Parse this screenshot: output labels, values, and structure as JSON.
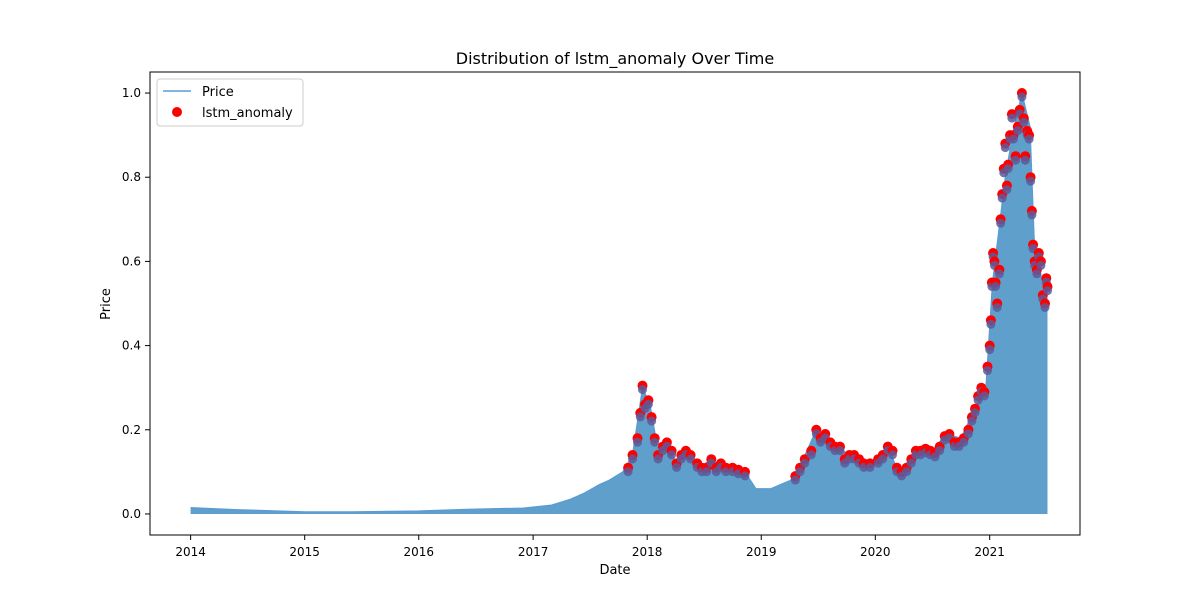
{
  "chart_data": {
    "type": "area",
    "title": "Distribution of lstm_anomaly Over Time",
    "xlabel": "Date",
    "ylabel": "Price",
    "x_range": [
      "2013-08-24",
      "2021-10-17"
    ],
    "ylim": [
      -0.05,
      1.05
    ],
    "x_ticks": [
      "2014",
      "2015",
      "2016",
      "2017",
      "2018",
      "2019",
      "2020",
      "2021"
    ],
    "y_ticks": [
      "0.0",
      "0.2",
      "0.4",
      "0.6",
      "0.8",
      "1.0"
    ],
    "grid": false,
    "legend": {
      "position": "top-left",
      "entries": [
        "Price",
        "lstm_anomaly"
      ]
    },
    "colors": {
      "price_line": "#5b9bd5",
      "price_fill": "#5f9fcb",
      "anomaly": "#ff0000",
      "anomaly_center": "#5a5a9a"
    },
    "series": [
      {
        "name": "Price",
        "points": [
          [
            "2014-01-01",
            0.015
          ],
          [
            "2014-03-01",
            0.013
          ],
          [
            "2014-06-01",
            0.01
          ],
          [
            "2014-09-01",
            0.008
          ],
          [
            "2015-01-01",
            0.005
          ],
          [
            "2015-06-01",
            0.005
          ],
          [
            "2016-01-01",
            0.007
          ],
          [
            "2016-06-01",
            0.011
          ],
          [
            "2016-12-01",
            0.014
          ],
          [
            "2017-03-01",
            0.021
          ],
          [
            "2017-05-01",
            0.035
          ],
          [
            "2017-06-15",
            0.05
          ],
          [
            "2017-08-01",
            0.07
          ],
          [
            "2017-09-01",
            0.08
          ],
          [
            "2017-10-15",
            0.1
          ],
          [
            "2017-11-15",
            0.14
          ],
          [
            "2017-12-17",
            0.3
          ],
          [
            "2018-01-10",
            0.26
          ],
          [
            "2018-02-05",
            0.15
          ],
          [
            "2018-03-01",
            0.17
          ],
          [
            "2018-04-05",
            0.12
          ],
          [
            "2018-05-05",
            0.15
          ],
          [
            "2018-06-15",
            0.11
          ],
          [
            "2018-07-25",
            0.13
          ],
          [
            "2018-09-01",
            0.11
          ],
          [
            "2018-11-10",
            0.1
          ],
          [
            "2018-12-15",
            0.06
          ],
          [
            "2019-02-01",
            0.06
          ],
          [
            "2019-04-05",
            0.08
          ],
          [
            "2019-05-15",
            0.13
          ],
          [
            "2019-06-26",
            0.2
          ],
          [
            "2019-08-01",
            0.18
          ],
          [
            "2019-09-15",
            0.15
          ],
          [
            "2019-10-25",
            0.14
          ],
          [
            "2019-12-15",
            0.12
          ],
          [
            "2020-02-10",
            0.16
          ],
          [
            "2020-03-15",
            0.1
          ],
          [
            "2020-05-15",
            0.15
          ],
          [
            "2020-07-01",
            0.15
          ],
          [
            "2020-08-15",
            0.19
          ],
          [
            "2020-10-01",
            0.18
          ],
          [
            "2020-11-15",
            0.25
          ],
          [
            "2020-12-20",
            0.3
          ],
          [
            "2021-01-10",
            0.55
          ],
          [
            "2021-02-20",
            0.8
          ],
          [
            "2021-03-15",
            0.9
          ],
          [
            "2021-04-14",
            1.0
          ],
          [
            "2021-05-10",
            0.92
          ],
          [
            "2021-05-25",
            0.62
          ],
          [
            "2021-06-20",
            0.55
          ],
          [
            "2021-07-05",
            0.54
          ]
        ]
      },
      {
        "name": "lstm_anomaly",
        "points": [
          [
            "2017-11-01",
            0.11
          ],
          [
            "2017-11-15",
            0.14
          ],
          [
            "2017-12-01",
            0.18
          ],
          [
            "2017-12-10",
            0.24
          ],
          [
            "2017-12-17",
            0.305
          ],
          [
            "2017-12-25",
            0.26
          ],
          [
            "2018-01-05",
            0.27
          ],
          [
            "2018-01-15",
            0.23
          ],
          [
            "2018-01-25",
            0.18
          ],
          [
            "2018-02-05",
            0.14
          ],
          [
            "2018-02-20",
            0.16
          ],
          [
            "2018-03-05",
            0.17
          ],
          [
            "2018-03-20",
            0.15
          ],
          [
            "2018-04-05",
            0.12
          ],
          [
            "2018-04-20",
            0.14
          ],
          [
            "2018-05-05",
            0.15
          ],
          [
            "2018-05-20",
            0.14
          ],
          [
            "2018-06-10",
            0.12
          ],
          [
            "2018-06-25",
            0.11
          ],
          [
            "2018-07-10",
            0.11
          ],
          [
            "2018-07-25",
            0.13
          ],
          [
            "2018-08-10",
            0.11
          ],
          [
            "2018-08-25",
            0.12
          ],
          [
            "2018-09-10",
            0.11
          ],
          [
            "2018-10-01",
            0.11
          ],
          [
            "2018-10-20",
            0.105
          ],
          [
            "2018-11-10",
            0.1
          ],
          [
            "2019-04-20",
            0.09
          ],
          [
            "2019-05-05",
            0.11
          ],
          [
            "2019-05-20",
            0.13
          ],
          [
            "2019-06-10",
            0.15
          ],
          [
            "2019-06-26",
            0.2
          ],
          [
            "2019-07-10",
            0.18
          ],
          [
            "2019-07-25",
            0.19
          ],
          [
            "2019-08-10",
            0.17
          ],
          [
            "2019-08-25",
            0.16
          ],
          [
            "2019-09-10",
            0.16
          ],
          [
            "2019-09-25",
            0.13
          ],
          [
            "2019-10-10",
            0.14
          ],
          [
            "2019-10-25",
            0.14
          ],
          [
            "2019-11-10",
            0.13
          ],
          [
            "2019-11-25",
            0.12
          ],
          [
            "2019-12-15",
            0.12
          ],
          [
            "2020-01-10",
            0.13
          ],
          [
            "2020-01-25",
            0.14
          ],
          [
            "2020-02-10",
            0.16
          ],
          [
            "2020-02-25",
            0.15
          ],
          [
            "2020-03-10",
            0.11
          ],
          [
            "2020-03-25",
            0.1
          ],
          [
            "2020-04-10",
            0.11
          ],
          [
            "2020-04-25",
            0.13
          ],
          [
            "2020-05-10",
            0.15
          ],
          [
            "2020-05-25",
            0.15
          ],
          [
            "2020-06-10",
            0.155
          ],
          [
            "2020-06-25",
            0.15
          ],
          [
            "2020-07-10",
            0.145
          ],
          [
            "2020-07-25",
            0.16
          ],
          [
            "2020-08-10",
            0.185
          ],
          [
            "2020-08-25",
            0.19
          ],
          [
            "2020-09-10",
            0.17
          ],
          [
            "2020-09-25",
            0.17
          ],
          [
            "2020-10-10",
            0.18
          ],
          [
            "2020-10-25",
            0.2
          ],
          [
            "2020-11-05",
            0.23
          ],
          [
            "2020-11-15",
            0.25
          ],
          [
            "2020-11-25",
            0.28
          ],
          [
            "2020-12-05",
            0.3
          ],
          [
            "2020-12-15",
            0.29
          ],
          [
            "2020-12-25",
            0.35
          ],
          [
            "2021-01-01",
            0.4
          ],
          [
            "2021-01-05",
            0.46
          ],
          [
            "2021-01-08",
            0.55
          ],
          [
            "2021-01-12",
            0.62
          ],
          [
            "2021-01-16",
            0.6
          ],
          [
            "2021-01-20",
            0.55
          ],
          [
            "2021-01-25",
            0.5
          ],
          [
            "2021-02-01",
            0.58
          ],
          [
            "2021-02-05",
            0.7
          ],
          [
            "2021-02-10",
            0.76
          ],
          [
            "2021-02-15",
            0.82
          ],
          [
            "2021-02-20",
            0.88
          ],
          [
            "2021-02-25",
            0.78
          ],
          [
            "2021-03-01",
            0.83
          ],
          [
            "2021-03-07",
            0.9
          ],
          [
            "2021-03-13",
            0.95
          ],
          [
            "2021-03-18",
            0.9
          ],
          [
            "2021-03-25",
            0.85
          ],
          [
            "2021-04-01",
            0.92
          ],
          [
            "2021-04-07",
            0.96
          ],
          [
            "2021-04-14",
            1.0
          ],
          [
            "2021-04-20",
            0.94
          ],
          [
            "2021-04-25",
            0.85
          ],
          [
            "2021-05-01",
            0.91
          ],
          [
            "2021-05-07",
            0.9
          ],
          [
            "2021-05-12",
            0.8
          ],
          [
            "2021-05-16",
            0.72
          ],
          [
            "2021-05-20",
            0.64
          ],
          [
            "2021-05-25",
            0.6
          ],
          [
            "2021-06-01",
            0.58
          ],
          [
            "2021-06-07",
            0.62
          ],
          [
            "2021-06-14",
            0.6
          ],
          [
            "2021-06-20",
            0.52
          ],
          [
            "2021-06-27",
            0.5
          ],
          [
            "2021-07-01",
            0.56
          ],
          [
            "2021-07-05",
            0.54
          ]
        ]
      }
    ]
  }
}
